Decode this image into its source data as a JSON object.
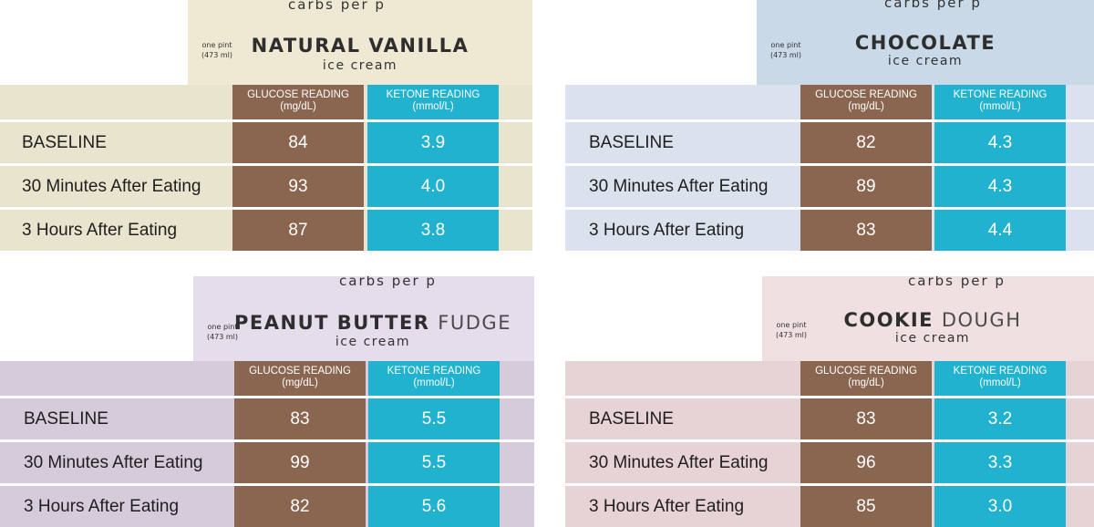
{
  "header": {
    "glucose_label": "GLUCOSE READING",
    "glucose_unit": "(mg/dL)",
    "ketone_label": "KETONE READING",
    "ketone_unit": "(mmol/L)"
  },
  "pint": {
    "arc_text": "carbs per p",
    "size_line1": "one pint",
    "size_line2": "(473 ml)",
    "subtitle": "ice cream"
  },
  "rows": {
    "baseline": "BASELINE",
    "thirty": "30 Minutes After Eating",
    "three_hours": "3 Hours After Eating"
  },
  "panels": [
    {
      "flavor_bold": "NATURAL VANILLA",
      "flavor_light": "",
      "colors": {
        "pint": "#efe9d4",
        "table": "#e9e4cd"
      },
      "readings": [
        {
          "glucose": "84",
          "ketone": "3.9"
        },
        {
          "glucose": "93",
          "ketone": "4.0"
        },
        {
          "glucose": "87",
          "ketone": "3.8"
        }
      ]
    },
    {
      "flavor_bold": "CHOCOLATE",
      "flavor_light": "",
      "colors": {
        "pint": "#c9d9e8",
        "table": "#dbe2ed"
      },
      "readings": [
        {
          "glucose": "82",
          "ketone": "4.3"
        },
        {
          "glucose": "89",
          "ketone": "4.3"
        },
        {
          "glucose": "83",
          "ketone": "4.4"
        }
      ]
    },
    {
      "flavor_bold": "PEANUT BUTTER",
      "flavor_light": "FUDGE",
      "colors": {
        "pint": "#e5dcec",
        "table": "#d6cbdb"
      },
      "readings": [
        {
          "glucose": "83",
          "ketone": "5.5"
        },
        {
          "glucose": "99",
          "ketone": "5.5"
        },
        {
          "glucose": "82",
          "ketone": "5.6"
        }
      ]
    },
    {
      "flavor_bold": "COOKIE",
      "flavor_light": "DOUGH",
      "colors": {
        "pint": "#f0e0e2",
        "table": "#e7d2d5"
      },
      "readings": [
        {
          "glucose": "83",
          "ketone": "3.2"
        },
        {
          "glucose": "96",
          "ketone": "3.3"
        },
        {
          "glucose": "85",
          "ketone": "3.0"
        }
      ]
    }
  ]
}
